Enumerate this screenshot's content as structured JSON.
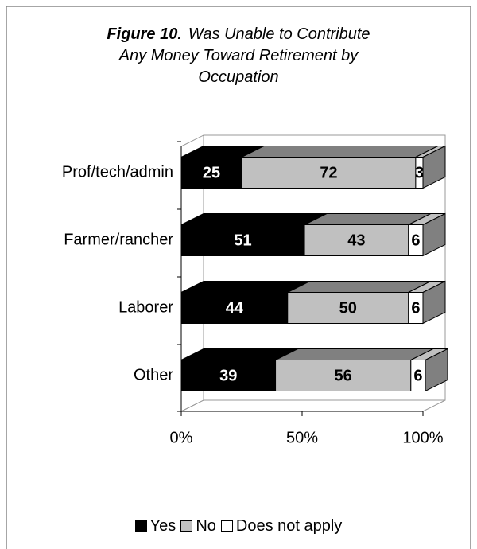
{
  "chart_data": {
    "type": "bar3d_stacked_horizontal",
    "title_label": "Figure 10.",
    "title": "Was Unable to Contribute Any Money Toward Retirement by Occupation",
    "categories": [
      "Prof/tech/admin",
      "Farmer/rancher",
      "Laborer",
      "Other"
    ],
    "series": [
      {
        "name": "Yes",
        "color": "#000000",
        "values": [
          25,
          51,
          44,
          39
        ]
      },
      {
        "name": "No",
        "color": "#c0c0c0",
        "values": [
          72,
          43,
          50,
          56
        ]
      },
      {
        "name": "Does not apply",
        "color": "#ffffff",
        "values": [
          3,
          6,
          6,
          6
        ]
      }
    ],
    "xlim": [
      0,
      100
    ],
    "xticks": [
      {
        "value": 0,
        "label": "0%"
      },
      {
        "value": 50,
        "label": "50%"
      },
      {
        "value": 100,
        "label": "100%"
      }
    ],
    "legend": "bottom"
  }
}
